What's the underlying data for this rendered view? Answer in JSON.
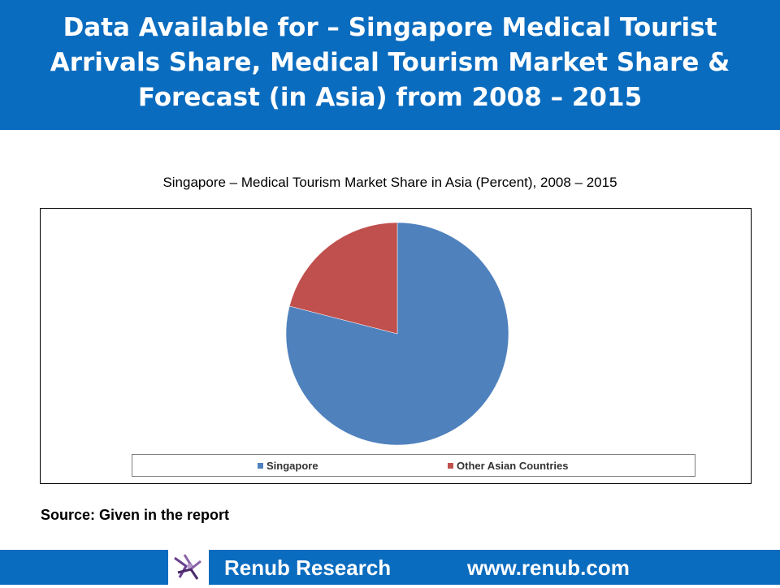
{
  "header": {
    "title": "Data Available for – Singapore Medical Tourist Arrivals Share, Medical Tourism Market Share & Forecast (in Asia) from 2008 – 2015"
  },
  "chart_data": {
    "type": "pie",
    "title": "Singapore – Medical Tourism Market Share in Asia (Percent), 2008 – 2015",
    "categories": [
      "Singapore",
      "Other Asian Countries"
    ],
    "values": [
      79,
      21
    ],
    "colors": [
      "#4f81bd",
      "#c0504d"
    ],
    "legend_position": "bottom"
  },
  "source": "Source: Given in the report",
  "footer": {
    "brand": "Renub Research",
    "url": "www.renub.com",
    "bar_color": "#0a6cbf"
  }
}
